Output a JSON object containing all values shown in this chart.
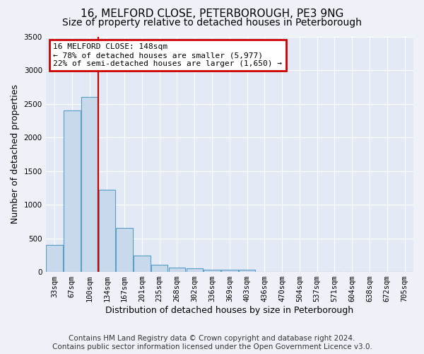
{
  "title1": "16, MELFORD CLOSE, PETERBOROUGH, PE3 9NG",
  "title2": "Size of property relative to detached houses in Peterborough",
  "xlabel": "Distribution of detached houses by size in Peterborough",
  "ylabel": "Number of detached properties",
  "footnote1": "Contains HM Land Registry data © Crown copyright and database right 2024.",
  "footnote2": "Contains public sector information licensed under the Open Government Licence v3.0.",
  "categories": [
    "33sqm",
    "67sqm",
    "100sqm",
    "134sqm",
    "167sqm",
    "201sqm",
    "235sqm",
    "268sqm",
    "302sqm",
    "336sqm",
    "369sqm",
    "403sqm",
    "436sqm",
    "470sqm",
    "504sqm",
    "537sqm",
    "571sqm",
    "604sqm",
    "638sqm",
    "672sqm",
    "705sqm"
  ],
  "values": [
    400,
    2400,
    2600,
    1220,
    650,
    240,
    110,
    60,
    55,
    30,
    30,
    30,
    0,
    0,
    0,
    0,
    0,
    0,
    0,
    0,
    0
  ],
  "bar_color": "#c9d9ec",
  "bar_edge_color": "#5a9fc8",
  "bar_linewidth": 0.8,
  "red_line_x": 2.5,
  "annotation_line1": "16 MELFORD CLOSE: 148sqm",
  "annotation_line2": "← 78% of detached houses are smaller (5,977)",
  "annotation_line3": "22% of semi-detached houses are larger (1,650) →",
  "annotation_box_color": "#ffffff",
  "annotation_box_edge": "#cc0000",
  "red_line_color": "#cc0000",
  "ylim": [
    0,
    3500
  ],
  "yticks": [
    0,
    500,
    1000,
    1500,
    2000,
    2500,
    3000,
    3500
  ],
  "background_color": "#eef2f8",
  "plot_background": "#e4eaf5",
  "grid_color": "#ffffff",
  "title_fontsize": 11,
  "subtitle_fontsize": 10,
  "axis_label_fontsize": 9,
  "tick_fontsize": 7.5,
  "annotation_fontsize": 8,
  "footnote_fontsize": 7.5
}
